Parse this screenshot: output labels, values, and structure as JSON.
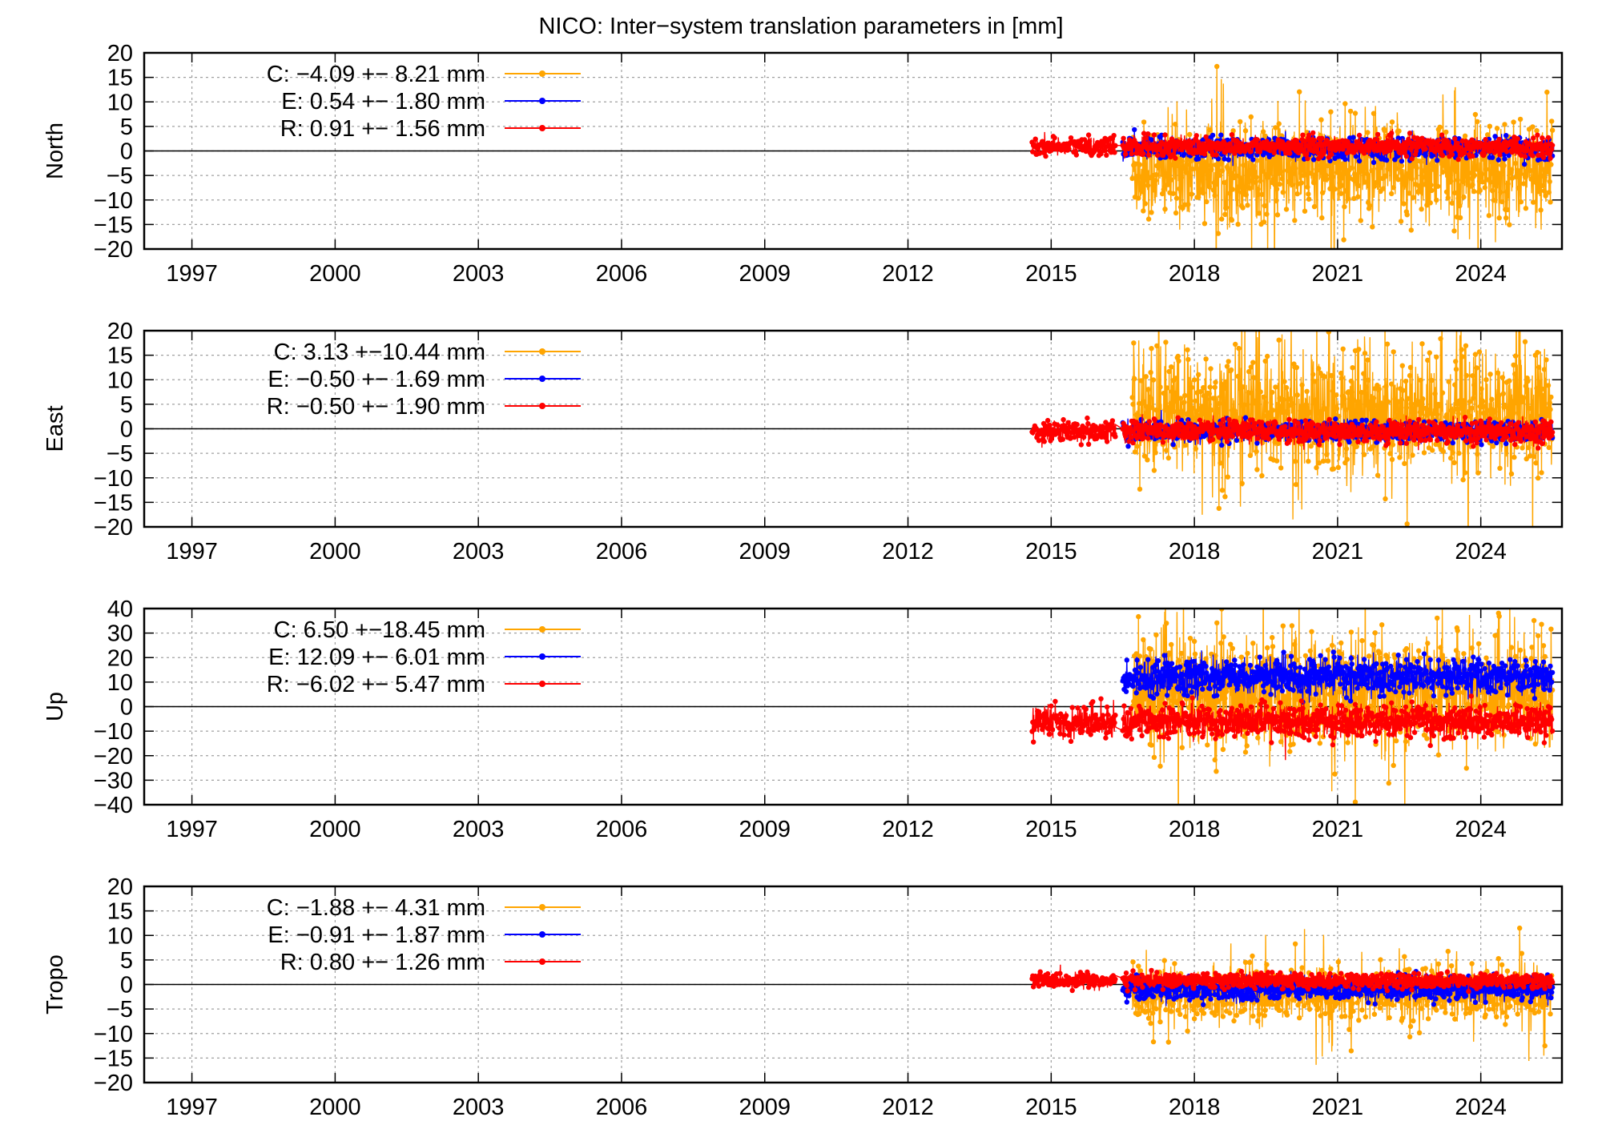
{
  "title": "NICO: Inter−system translation parameters in [mm]",
  "x_ticks": [
    "1997",
    "2000",
    "2003",
    "2006",
    "2009",
    "2012",
    "2015",
    "2018",
    "2021",
    "2024"
  ],
  "colors": {
    "C": "#ffa500",
    "E": "#0000ff",
    "R": "#ff0000",
    "zero_line": "#000000",
    "grid": "#a0a0a0"
  },
  "chart_data": [
    {
      "type": "line",
      "title": "North",
      "ylabel": "North",
      "xlim": [
        1996.0,
        2025.7
      ],
      "ylim": [
        -20,
        20
      ],
      "y_ticks": [
        "20",
        "15",
        "10",
        "5",
        "0",
        "−5",
        "−10",
        "−15",
        "−20"
      ],
      "series": [
        {
          "name": "C",
          "legend": "C:  −4.09 +− 8.21 mm",
          "start": 2016.7,
          "mean": -4.09,
          "std": 8.21
        },
        {
          "name": "E",
          "legend": "E:   0.54 +− 1.80 mm",
          "start": 2016.5,
          "mean": 0.54,
          "std": 1.8
        },
        {
          "name": "R",
          "legend": "R:   0.91 +− 1.56 mm",
          "start": 2014.6,
          "mean": 0.91,
          "std": 1.56
        }
      ]
    },
    {
      "type": "line",
      "title": "East",
      "ylabel": "East",
      "xlim": [
        1996.0,
        2025.7
      ],
      "ylim": [
        -20,
        20
      ],
      "y_ticks": [
        "20",
        "15",
        "10",
        "5",
        "0",
        "−5",
        "−10",
        "−15",
        "−20"
      ],
      "series": [
        {
          "name": "C",
          "legend": "C:   3.13 +−10.44 mm",
          "start": 2016.7,
          "mean": 3.13,
          "std": 10.44
        },
        {
          "name": "E",
          "legend": "E:  −0.50 +− 1.69 mm",
          "start": 2016.5,
          "mean": -0.5,
          "std": 1.69
        },
        {
          "name": "R",
          "legend": "R:  −0.50 +− 1.90 mm",
          "start": 2014.6,
          "mean": -0.5,
          "std": 1.9
        }
      ]
    },
    {
      "type": "line",
      "title": "Up",
      "ylabel": "Up",
      "xlim": [
        1996.0,
        2025.7
      ],
      "ylim": [
        -40,
        40
      ],
      "y_ticks": [
        "40",
        "30",
        "20",
        "10",
        "0",
        "−10",
        "−20",
        "−30",
        "−40"
      ],
      "series": [
        {
          "name": "C",
          "legend": "C:   6.50 +−18.45 mm",
          "start": 2016.7,
          "mean": 6.5,
          "std": 18.45
        },
        {
          "name": "E",
          "legend": "E:  12.09 +− 6.01 mm",
          "start": 2016.5,
          "mean": 12.09,
          "std": 6.01
        },
        {
          "name": "R",
          "legend": "R:  −6.02 +− 5.47 mm",
          "start": 2014.6,
          "mean": -6.02,
          "std": 5.47
        }
      ]
    },
    {
      "type": "line",
      "title": "Tropo",
      "ylabel": "Tropo",
      "xlim": [
        1996.0,
        2025.7
      ],
      "ylim": [
        -20,
        20
      ],
      "y_ticks": [
        "20",
        "15",
        "10",
        "5",
        "0",
        "−5",
        "−10",
        "−15",
        "−20"
      ],
      "series": [
        {
          "name": "C",
          "legend": "C:  −1.88 +− 4.31 mm",
          "start": 2016.7,
          "mean": -1.88,
          "std": 4.31
        },
        {
          "name": "E",
          "legend": "E:  −0.91 +− 1.87 mm",
          "start": 2016.5,
          "mean": -0.91,
          "std": 1.87
        },
        {
          "name": "R",
          "legend": "R:   0.80 +− 1.26 mm",
          "start": 2014.6,
          "mean": 0.8,
          "std": 1.26
        }
      ]
    }
  ]
}
